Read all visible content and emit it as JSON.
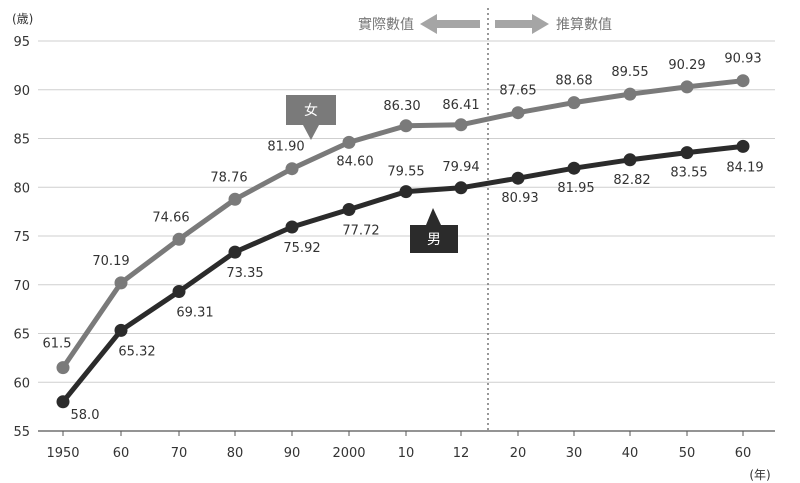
{
  "chart_data": {
    "type": "line",
    "y_unit": "(歳)",
    "x_unit": "(年)",
    "x_tick_labels": [
      "1950",
      "60",
      "70",
      "80",
      "90",
      "2000",
      "10",
      "12",
      "20",
      "30",
      "40",
      "50",
      "60"
    ],
    "ylim": [
      55,
      95
    ],
    "y_ticks": [
      "55",
      "60",
      "65",
      "70",
      "75",
      "80",
      "85",
      "90",
      "95"
    ],
    "grid": true,
    "phase_labels": {
      "actual": "實際數值",
      "projected": "推算數值"
    },
    "series": [
      {
        "name": "女",
        "color": "#7a7a7a",
        "values": [
          61.5,
          70.19,
          74.66,
          78.76,
          81.9,
          84.6,
          86.3,
          86.41,
          87.65,
          88.68,
          89.55,
          90.29,
          90.93
        ],
        "value_labels": [
          "61.5",
          "70.19",
          "74.66",
          "78.76",
          "81.90",
          "84.60",
          "86.30",
          "86.41",
          "87.65",
          "88.68",
          "89.55",
          "90.29",
          "90.93"
        ]
      },
      {
        "name": "男",
        "color": "#2b2b2b",
        "values": [
          58.0,
          65.32,
          69.31,
          73.35,
          75.92,
          77.72,
          79.55,
          79.94,
          80.93,
          81.95,
          82.82,
          83.55,
          84.19
        ],
        "value_labels": [
          "58.0",
          "65.32",
          "69.31",
          "73.35",
          "75.92",
          "77.72",
          "79.55",
          "79.94",
          "80.93",
          "81.95",
          "82.82",
          "83.55",
          "84.19"
        ]
      }
    ]
  }
}
